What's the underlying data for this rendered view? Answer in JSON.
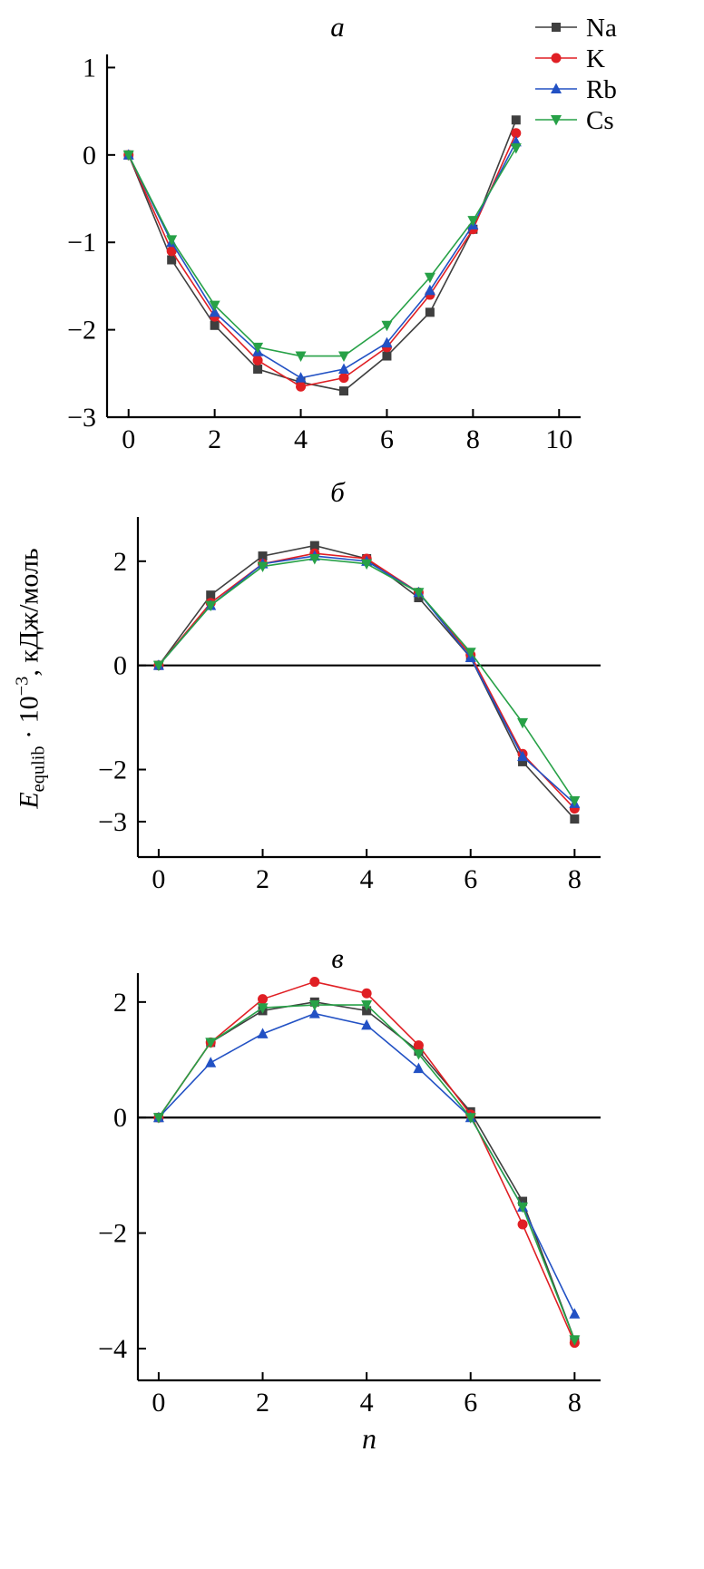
{
  "figure": {
    "xlabel": "n",
    "ylabel": {
      "var": "E",
      "sub": "equlib",
      "mid": " · 10",
      "sup": "−3",
      "tail": ", кДж/моль"
    },
    "legend": [
      {
        "label": "Na",
        "color": "#3f3f3f",
        "marker": "square"
      },
      {
        "label": "K",
        "color": "#e01f24",
        "marker": "circle"
      },
      {
        "label": "Rb",
        "color": "#2251c4",
        "marker": "triangle-up"
      },
      {
        "label": "Cs",
        "color": "#27a147",
        "marker": "triangle-down"
      }
    ]
  },
  "chart_data": [
    {
      "type": "line",
      "title": "а",
      "x": [
        0,
        1,
        2,
        3,
        4,
        5,
        6,
        7,
        8,
        9
      ],
      "series": [
        {
          "name": "Na",
          "values": [
            0,
            -1.2,
            -1.95,
            -2.45,
            -2.6,
            -2.7,
            -2.3,
            -1.8,
            -0.85,
            0.4
          ]
        },
        {
          "name": "K",
          "values": [
            0,
            -1.1,
            -1.85,
            -2.35,
            -2.65,
            -2.55,
            -2.2,
            -1.6,
            -0.85,
            0.25
          ]
        },
        {
          "name": "Rb",
          "values": [
            0,
            -1.0,
            -1.8,
            -2.25,
            -2.55,
            -2.45,
            -2.15,
            -1.55,
            -0.8,
            0.15
          ]
        },
        {
          "name": "Cs",
          "values": [
            0,
            -0.97,
            -1.72,
            -2.2,
            -2.3,
            -2.3,
            -1.95,
            -1.4,
            -0.75,
            0.08
          ]
        }
      ],
      "xticks": [
        0,
        2,
        4,
        6,
        8,
        10
      ],
      "yticks": [
        1,
        0,
        -1,
        -2,
        -3
      ],
      "xlim": [
        -0.5,
        10.5
      ],
      "ylim": [
        -3,
        1.15
      ],
      "zero_line": false,
      "show_legend": true
    },
    {
      "type": "line",
      "title": "б",
      "x": [
        0,
        1,
        2,
        3,
        4,
        5,
        6,
        7,
        8
      ],
      "series": [
        {
          "name": "Na",
          "values": [
            0,
            1.35,
            2.1,
            2.3,
            2.05,
            1.3,
            0.15,
            -1.85,
            -2.95
          ]
        },
        {
          "name": "K",
          "values": [
            0,
            1.2,
            1.95,
            2.15,
            2.05,
            1.4,
            0.2,
            -1.7,
            -2.75
          ]
        },
        {
          "name": "Rb",
          "values": [
            0,
            1.15,
            1.95,
            2.1,
            2.0,
            1.4,
            0.15,
            -1.75,
            -2.65
          ]
        },
        {
          "name": "Cs",
          "values": [
            0,
            1.15,
            1.9,
            2.05,
            1.95,
            1.4,
            0.25,
            -1.1,
            -2.6
          ]
        }
      ],
      "xticks": [
        0,
        2,
        4,
        6,
        8
      ],
      "yticks": [
        2,
        0,
        -2,
        -3
      ],
      "xlim": [
        -0.4,
        8.5
      ],
      "ylim": [
        -3.68,
        2.85
      ],
      "zero_line": true,
      "show_legend": false
    },
    {
      "type": "line",
      "title": "в",
      "x": [
        0,
        1,
        2,
        3,
        4,
        5,
        6,
        7,
        8
      ],
      "series": [
        {
          "name": "Na",
          "values": [
            0,
            1.3,
            1.85,
            2.0,
            1.85,
            1.15,
            0.1,
            -1.45,
            -3.85
          ]
        },
        {
          "name": "K",
          "values": [
            0,
            1.3,
            2.05,
            2.35,
            2.15,
            1.25,
            0.05,
            -1.85,
            -3.9
          ]
        },
        {
          "name": "Rb",
          "values": [
            0,
            0.95,
            1.45,
            1.8,
            1.6,
            0.85,
            0.0,
            -1.55,
            -3.4
          ]
        },
        {
          "name": "Cs",
          "values": [
            0,
            1.3,
            1.9,
            1.95,
            1.95,
            1.1,
            0.0,
            -1.55,
            -3.85
          ]
        }
      ],
      "xticks": [
        0,
        2,
        4,
        6,
        8
      ],
      "yticks": [
        2,
        0,
        -2,
        -4
      ],
      "xlim": [
        -0.4,
        8.5
      ],
      "ylim": [
        -4.55,
        2.5
      ],
      "zero_line": true,
      "show_legend": false,
      "show_xlabel": true
    }
  ]
}
